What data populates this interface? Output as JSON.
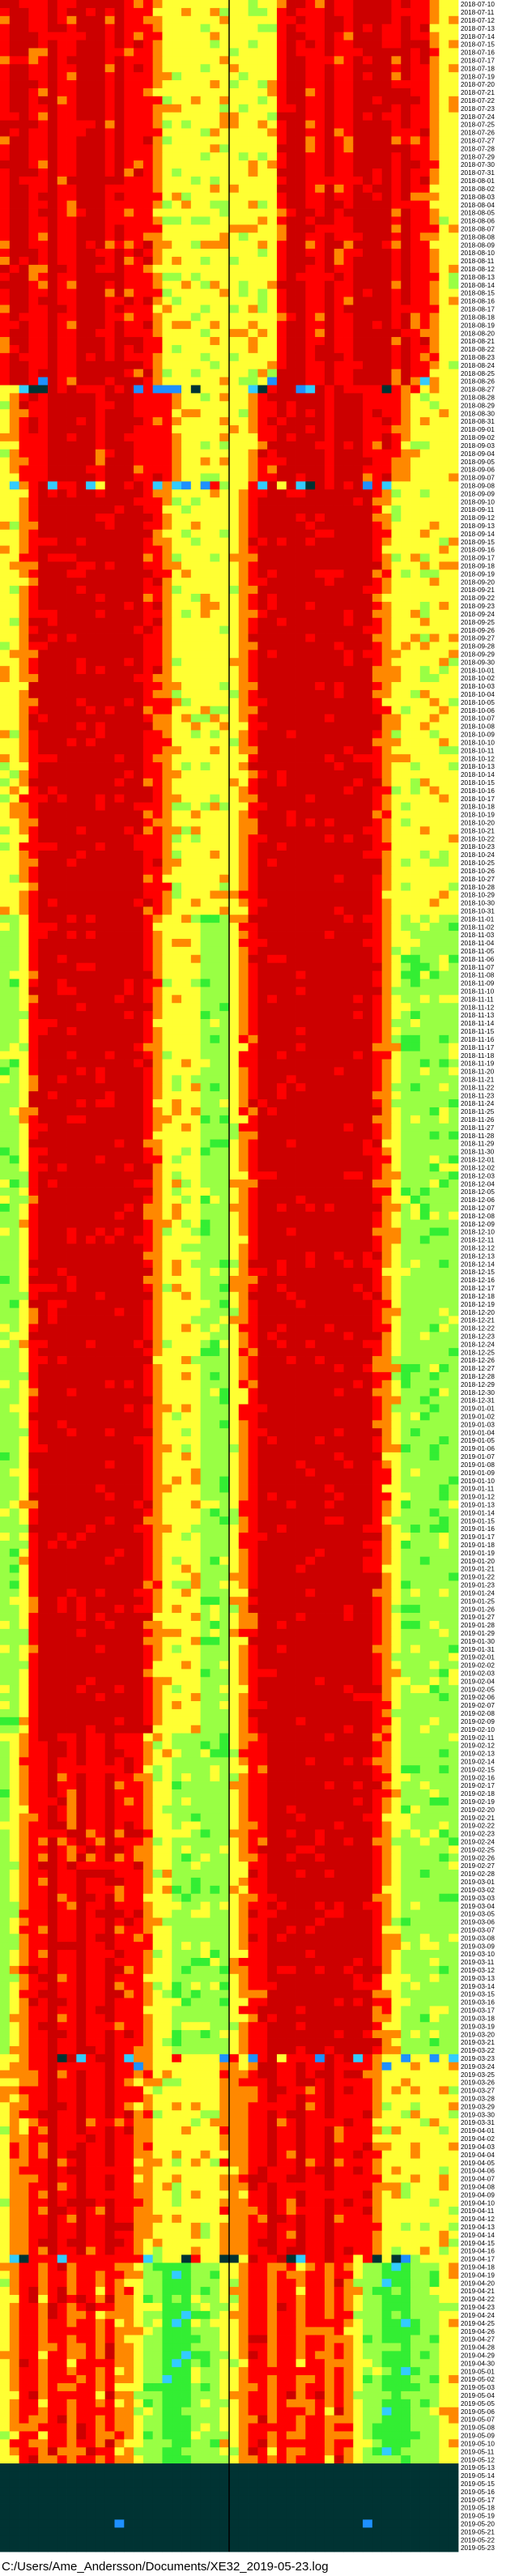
{
  "chart_data": {
    "type": "heatmap",
    "title": "",
    "xlabel": "",
    "ylabel": "",
    "value_scale": "0 = dark teal, 1 = blue, 2 = cyan, 3 = bright green, 4 = light green, 5 = yellow, 6 = orange, 7 = red, 8 = dark red",
    "colors": [
      "#003333",
      "#1e90ff",
      "#33ccff",
      "#33ee33",
      "#99ff44",
      "#ffff33",
      "#ff8800",
      "#ff0000",
      "#cc0000"
    ],
    "start_date": "2018-07-10",
    "end_date": "2019-05-23",
    "columns_per_day": 48,
    "day_profiles": [
      {
        "from": "2018-07-10",
        "to": "2018-08-26",
        "row": [
          7,
          8,
          8,
          7,
          7,
          8,
          7,
          7,
          8,
          8,
          8,
          7,
          8,
          7,
          7,
          7,
          6,
          5,
          5,
          5,
          5,
          5,
          5,
          5,
          5,
          5,
          5,
          5,
          5,
          7,
          8,
          8,
          7,
          7,
          8,
          7,
          7,
          8,
          8,
          8,
          8,
          7,
          8,
          7,
          7,
          6,
          5,
          5
        ]
      },
      {
        "from": "2018-08-27",
        "to": "2018-09-07",
        "row": [
          5,
          6,
          7,
          7,
          7,
          8,
          8,
          8,
          8,
          8,
          7,
          8,
          8,
          8,
          7,
          7,
          7,
          7,
          6,
          5,
          5,
          5,
          5,
          5,
          5,
          5,
          6,
          7,
          7,
          8,
          8,
          8,
          8,
          8,
          7,
          8,
          8,
          8,
          7,
          7,
          7,
          7,
          6,
          5,
          5,
          5,
          5,
          5
        ]
      },
      {
        "from": "2018-09-08",
        "to": "2018-10-31",
        "row": [
          5,
          5,
          6,
          7,
          8,
          8,
          8,
          8,
          8,
          8,
          8,
          8,
          8,
          8,
          8,
          7,
          7,
          6,
          5,
          5,
          5,
          5,
          5,
          5,
          5,
          6,
          7,
          8,
          8,
          8,
          8,
          8,
          8,
          8,
          8,
          8,
          8,
          8,
          8,
          7,
          6,
          5,
          5,
          5,
          5,
          5,
          5,
          5
        ]
      },
      {
        "from": "2018-11-01",
        "to": "2019-02-10",
        "row": [
          4,
          4,
          5,
          7,
          8,
          8,
          8,
          8,
          8,
          8,
          8,
          8,
          8,
          8,
          8,
          7,
          6,
          5,
          5,
          5,
          5,
          4,
          4,
          4,
          5,
          6,
          7,
          8,
          8,
          8,
          8,
          8,
          8,
          8,
          8,
          8,
          8,
          8,
          8,
          7,
          6,
          5,
          4,
          4,
          4,
          4,
          4,
          4
        ]
      },
      {
        "from": "2019-02-11",
        "to": "2019-03-22",
        "row": [
          4,
          5,
          6,
          7,
          7,
          8,
          7,
          7,
          8,
          7,
          7,
          8,
          7,
          7,
          7,
          6,
          5,
          5,
          4,
          4,
          4,
          4,
          4,
          4,
          5,
          6,
          7,
          7,
          8,
          8,
          8,
          8,
          8,
          8,
          8,
          8,
          8,
          8,
          8,
          7,
          6,
          5,
          4,
          4,
          4,
          4,
          4,
          4
        ]
      },
      {
        "from": "2019-03-23",
        "to": "2019-04-17",
        "row": [
          5,
          6,
          6,
          7,
          7,
          8,
          7,
          7,
          8,
          7,
          7,
          8,
          7,
          7,
          6,
          6,
          5,
          5,
          5,
          5,
          5,
          5,
          5,
          6,
          6,
          6,
          7,
          7,
          8,
          7,
          7,
          8,
          7,
          7,
          8,
          7,
          7,
          7,
          7,
          6,
          5,
          5,
          5,
          5,
          5,
          5,
          5,
          5
        ]
      },
      {
        "from": "2019-04-18",
        "to": "2019-05-12",
        "row": [
          5,
          6,
          7,
          7,
          6,
          7,
          7,
          6,
          7,
          7,
          6,
          7,
          6,
          6,
          5,
          4,
          4,
          3,
          3,
          3,
          4,
          4,
          4,
          5,
          5,
          6,
          7,
          7,
          6,
          7,
          7,
          6,
          7,
          7,
          6,
          7,
          6,
          5,
          4,
          4,
          3,
          3,
          3,
          4,
          4,
          4,
          5,
          5
        ]
      },
      {
        "from": "2019-05-13",
        "to": "2019-05-23",
        "row": [
          0,
          0,
          0,
          0,
          0,
          0,
          0,
          0,
          0,
          0,
          0,
          0,
          0,
          0,
          0,
          0,
          0,
          0,
          0,
          0,
          0,
          0,
          0,
          0,
          0,
          0,
          0,
          0,
          0,
          0,
          0,
          0,
          0,
          0,
          0,
          0,
          0,
          0,
          0,
          0,
          0,
          0,
          0,
          0,
          0,
          0,
          0,
          0
        ]
      }
    ],
    "outage_days": [
      "2018-08-27",
      "2018-09-08",
      "2019-03-23",
      "2019-04-17"
    ],
    "markers": [
      {
        "date": "2018-08-26",
        "slot": 4,
        "value": 1
      },
      {
        "date": "2018-08-26",
        "slot": 28,
        "value": 1
      },
      {
        "date": "2018-08-26",
        "slot": 44,
        "value": 2
      },
      {
        "date": "2018-09-08",
        "slot": 18,
        "value": 2
      },
      {
        "date": "2018-09-08",
        "slot": 40,
        "value": 2
      },
      {
        "date": "2019-03-24",
        "slot": 14,
        "value": 1
      },
      {
        "date": "2019-03-24",
        "slot": 40,
        "value": 1
      },
      {
        "date": "2019-05-20",
        "slot": 12,
        "value": 1
      },
      {
        "date": "2019-05-20",
        "slot": 38,
        "value": 1
      }
    ]
  },
  "footer_path": "C:/Users/Ame_Andersson/Documents/XE32_2019-05-23.log"
}
